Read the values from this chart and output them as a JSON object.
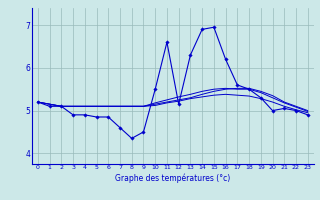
{
  "hours": [
    0,
    1,
    2,
    3,
    4,
    5,
    6,
    7,
    8,
    9,
    10,
    11,
    12,
    13,
    14,
    15,
    16,
    17,
    18,
    19,
    20,
    21,
    22,
    23
  ],
  "temp_line": [
    5.2,
    5.1,
    5.1,
    4.9,
    4.9,
    4.85,
    4.85,
    4.6,
    4.35,
    4.5,
    5.5,
    6.6,
    5.15,
    6.3,
    6.9,
    6.95,
    6.2,
    5.6,
    5.5,
    5.3,
    5.0,
    5.05,
    5.0,
    4.9
  ],
  "line2": [
    5.2,
    5.15,
    5.1,
    5.1,
    5.1,
    5.1,
    5.1,
    5.1,
    5.1,
    5.1,
    5.15,
    5.2,
    5.25,
    5.3,
    5.38,
    5.45,
    5.5,
    5.52,
    5.52,
    5.45,
    5.35,
    5.2,
    5.1,
    5.0
  ],
  "line3": [
    5.2,
    5.15,
    5.1,
    5.1,
    5.1,
    5.1,
    5.1,
    5.1,
    5.1,
    5.1,
    5.18,
    5.25,
    5.32,
    5.38,
    5.45,
    5.5,
    5.52,
    5.5,
    5.5,
    5.42,
    5.3,
    5.18,
    5.08,
    4.98
  ],
  "line4": [
    5.2,
    5.15,
    5.1,
    5.1,
    5.1,
    5.1,
    5.1,
    5.1,
    5.1,
    5.1,
    5.12,
    5.18,
    5.22,
    5.28,
    5.32,
    5.36,
    5.38,
    5.36,
    5.34,
    5.28,
    5.2,
    5.1,
    5.02,
    4.95
  ],
  "bg_color": "#cce8e8",
  "line_color": "#0000cc",
  "grid_color": "#99bbbb",
  "xlabel": "Graphe des températures (°c)",
  "ylim": [
    3.75,
    7.4
  ],
  "xlim": [
    -0.5,
    23.5
  ],
  "yticks": [
    4,
    5,
    6,
    7
  ],
  "xticks": [
    0,
    1,
    2,
    3,
    4,
    5,
    6,
    7,
    8,
    9,
    10,
    11,
    12,
    13,
    14,
    15,
    16,
    17,
    18,
    19,
    20,
    21,
    22,
    23
  ]
}
